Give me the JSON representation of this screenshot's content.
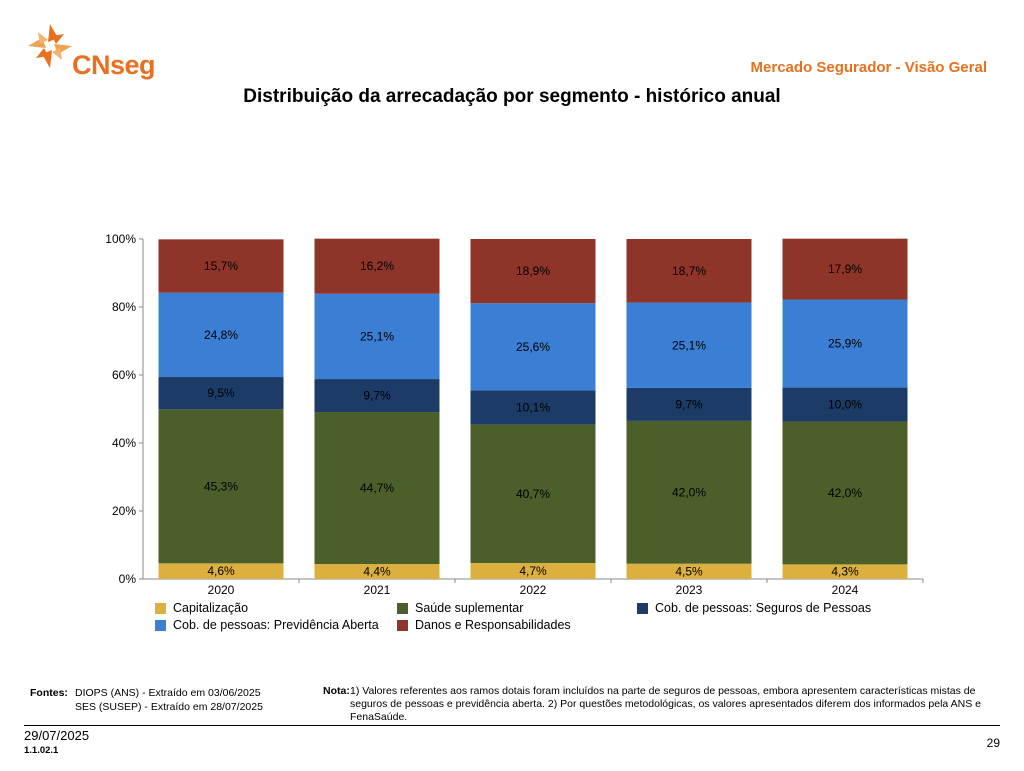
{
  "header": {
    "logo_text": "CNseg",
    "section_title": "Mercado Segurador - Visão Geral"
  },
  "colors": {
    "brand_orange": "#e8701e",
    "capitalizacao": "#dcb03e",
    "saude": "#4b5f2a",
    "seguros_pessoas": "#1c3b66",
    "previdencia": "#3b7fd4",
    "danos": "#8f3429"
  },
  "chart_data": {
    "type": "bar",
    "stacked": true,
    "title": "Distribuição da arrecadação por segmento - histórico anual",
    "categories": [
      "2020",
      "2021",
      "2022",
      "2023",
      "2024"
    ],
    "ylim": [
      0,
      100
    ],
    "yticks": [
      "0%",
      "20%",
      "40%",
      "60%",
      "80%",
      "100%"
    ],
    "legend_position": "bottom",
    "series": [
      {
        "name": "Capitalização",
        "color": "#dcb03e",
        "values": [
          4.6,
          4.4,
          4.7,
          4.5,
          4.3
        ],
        "labels": [
          "4,6%",
          "4,4%",
          "4,7%",
          "4,5%",
          "4,3%"
        ]
      },
      {
        "name": "Saúde suplementar",
        "color": "#4b5f2a",
        "values": [
          45.3,
          44.7,
          40.7,
          42.0,
          42.0
        ],
        "labels": [
          "45,3%",
          "44,7%",
          "40,7%",
          "42,0%",
          "42,0%"
        ]
      },
      {
        "name": "Cob. de pessoas: Seguros de Pessoas",
        "color": "#1c3b66",
        "values": [
          9.5,
          9.7,
          10.1,
          9.7,
          10.0
        ],
        "labels": [
          "9,5%",
          "9,7%",
          "10,1%",
          "9,7%",
          "10,0%"
        ]
      },
      {
        "name": "Cob. de pessoas: Previdência Aberta",
        "color": "#3b7fd4",
        "values": [
          24.8,
          25.1,
          25.6,
          25.1,
          25.9
        ],
        "labels": [
          "24,8%",
          "25,1%",
          "25,6%",
          "25,1%",
          "25,9%"
        ]
      },
      {
        "name": "Danos e Responsabilidades",
        "color": "#8f3429",
        "values": [
          15.7,
          16.2,
          18.9,
          18.7,
          17.9
        ],
        "labels": [
          "15,7%",
          "16,2%",
          "18,9%",
          "18,7%",
          "17,9%"
        ]
      }
    ]
  },
  "footer": {
    "sources_label": "Fontes:",
    "source_1": "DIOPS (ANS) -  Extraído em 03/06/2025",
    "source_2": "SES (SUSEP) -  Extraído em 28/07/2025",
    "note_label": "Nota:",
    "note_text": "1) Valores referentes aos ramos dotais foram incluídos na parte de seguros de pessoas, embora apresentem características mistas de seguros de pessoas e previdência aberta. 2) Por questões metodológicas, os valores apresentados diferem dos informados pela ANS e FenaSaúde.",
    "date": "29/07/2025",
    "version": "1.1.02.1",
    "page_number": "29"
  }
}
